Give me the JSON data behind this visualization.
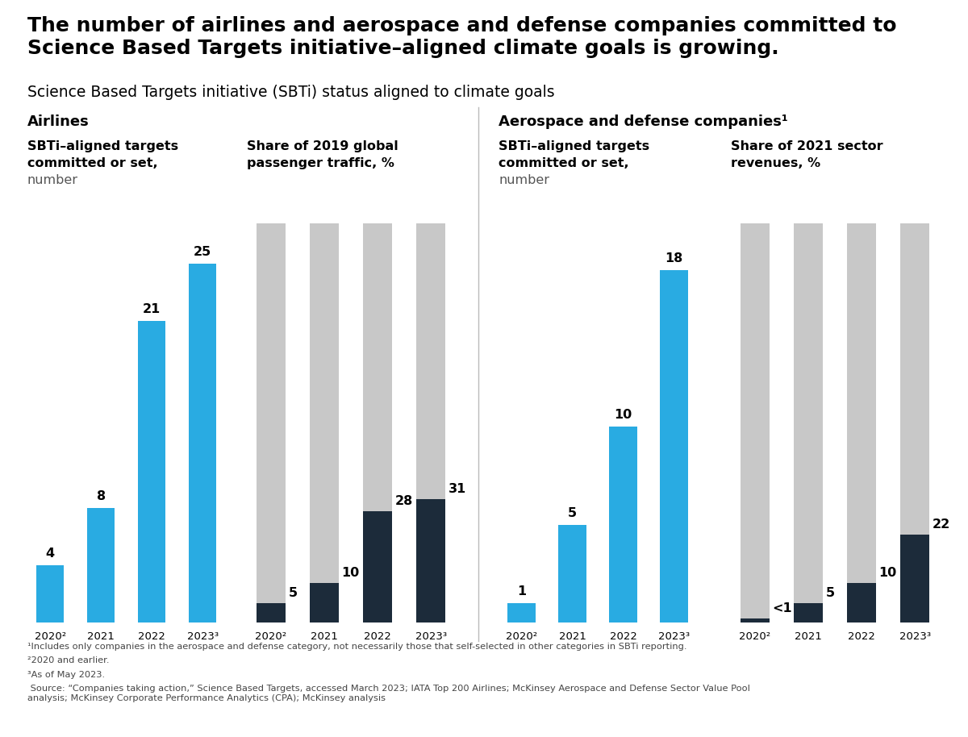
{
  "title_line1": "The number of airlines and aerospace and defense companies committed to",
  "title_line2": "Science Based Targets initiative–aligned climate goals is growing.",
  "subtitle": "Science Based Targets initiative (SBTi) status aligned to climate goals",
  "airlines_label": "Airlines",
  "airlines_sbti_label_line1": "SBTi–aligned targets",
  "airlines_sbti_label_line2": "committed or set,",
  "airlines_sbti_label_line3": "number",
  "airlines_share_label_line1": "Share of 2019 global",
  "airlines_share_label_line2": "passenger traffic, %",
  "aero_label": "Aerospace and defense companies¹",
  "aero_sbti_label_line1": "SBTi–aligned targets",
  "aero_sbti_label_line2": "committed or set,",
  "aero_sbti_label_line3": "number",
  "aero_share_label_line1": "Share of 2021 sector",
  "aero_share_label_line2": "revenues, %",
  "years": [
    "2020²",
    "2021",
    "2022",
    "2023³"
  ],
  "airlines_sbti_values": [
    4,
    8,
    21,
    25
  ],
  "airlines_share_dark": [
    5,
    10,
    28,
    31
  ],
  "aero_sbti_values": [
    1,
    5,
    10,
    18
  ],
  "aero_share_dark": [
    1,
    5,
    10,
    22
  ],
  "aero_share_dark_label": [
    "<1",
    "5",
    "10",
    "22"
  ],
  "blue_color": "#29ABE2",
  "dark_color": "#1C2B3A",
  "gray_color": "#C8C8C8",
  "bg_color": "#FFFFFF",
  "footnote1": "¹Includes only companies in the aerospace and defense category, not necessarily those that self-selected in other categories in SBTi reporting.",
  "footnote2": "²2020 and earlier.",
  "footnote3": "³As of May 2023.",
  "source": " Source: “Companies taking action,” Science Based Targets, accessed March 2023; IATA Top 200 Airlines; McKinsey Aerospace and Defense Sector Value Pool\nanalysis; McKinsey Corporate Performance Analytics (CPA); McKinsey analysis"
}
